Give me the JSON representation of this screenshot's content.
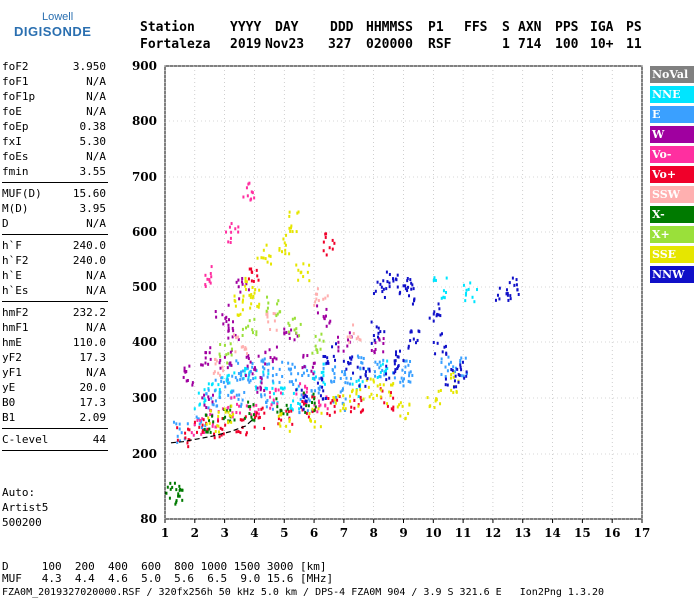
{
  "logo": {
    "top": "Lowell",
    "bottom": "DIGISONDE"
  },
  "header": {
    "labels": [
      "Station",
      "YYYY",
      "DAY",
      "DDD",
      "HHMMSS",
      "P1",
      "FFS",
      "S",
      "AXN",
      "PPS",
      "IGA",
      "PS"
    ],
    "values": [
      "Fortaleza",
      "2019",
      "Nov23",
      "327",
      "020000",
      "RSF",
      "",
      "1",
      "714",
      "100",
      "10+",
      "11"
    ]
  },
  "params": {
    "group1": [
      {
        "name": "foF2",
        "value": "3.950"
      },
      {
        "name": "foF1",
        "value": "N/A"
      },
      {
        "name": "foF1p",
        "value": "N/A"
      },
      {
        "name": "foE",
        "value": "N/A"
      },
      {
        "name": "foEp",
        "value": "0.38"
      },
      {
        "name": "fxI",
        "value": "5.30"
      },
      {
        "name": "foEs",
        "value": "N/A"
      },
      {
        "name": "fmin",
        "value": "3.55"
      }
    ],
    "group2": [
      {
        "name": "MUF(D)",
        "value": "15.60"
      },
      {
        "name": "M(D)",
        "value": "3.95"
      },
      {
        "name": "D",
        "value": "N/A"
      }
    ],
    "group3": [
      {
        "name": "h`F",
        "value": "240.0"
      },
      {
        "name": "h`F2",
        "value": "240.0"
      },
      {
        "name": "h`E",
        "value": "N/A"
      },
      {
        "name": "h`Es",
        "value": "N/A"
      }
    ],
    "group4": [
      {
        "name": "hmF2",
        "value": "232.2"
      },
      {
        "name": "hmF1",
        "value": "N/A"
      },
      {
        "name": "hmE",
        "value": "110.0"
      },
      {
        "name": "yF2",
        "value": "17.3"
      },
      {
        "name": "yF1",
        "value": "N/A"
      },
      {
        "name": "yE",
        "value": "20.0"
      },
      {
        "name": "B0",
        "value": "17.3"
      },
      {
        "name": "B1",
        "value": "2.09"
      }
    ],
    "group5": [
      {
        "name": "C-level",
        "value": "44"
      }
    ]
  },
  "auto": {
    "line1": "Auto:",
    "line2": "Artist5",
    "line3": "500200"
  },
  "muf_table": {
    "d_row": "D     100  200  400  600  800 1000 1500 3000 [km]",
    "muf_row": "MUF   4.3  4.4  4.6  5.0  5.6  6.5  9.0 15.6 [MHz]"
  },
  "footer": "FZA0M_2019327020000.RSF / 320fx256h 50 kHz 5.0 km / DPS-4 FZA0M 904 / 3.9 S 321.6 E   Ion2Png 1.3.20",
  "legend": [
    {
      "label": "NoVal",
      "color": "#808080"
    },
    {
      "label": "NNE",
      "color": "#00e5ff"
    },
    {
      "label": "E",
      "color": "#3aa0ff"
    },
    {
      "label": "W",
      "color": "#a000a0"
    },
    {
      "label": "Vo-",
      "color": "#ff2fa0"
    },
    {
      "label": "Vo+",
      "color": "#f0002a"
    },
    {
      "label": "SSW",
      "color": "#ffb0b0"
    },
    {
      "label": "X-",
      "color": "#007a00"
    },
    {
      "label": "X+",
      "color": "#9ae03a"
    },
    {
      "label": "SSE",
      "color": "#e6e600"
    },
    {
      "label": "NNW",
      "color": "#1010c8"
    }
  ],
  "chart_data": {
    "type": "scatter",
    "title": "",
    "xlabel": "",
    "ylabel": "",
    "xlim": [
      1,
      17
    ],
    "ylim": [
      80,
      900
    ],
    "x_ticks": [
      1,
      2,
      3,
      4,
      5,
      6,
      7,
      8,
      9,
      10,
      11,
      12,
      13,
      14,
      15,
      16,
      17
    ],
    "y_ticks": [
      80,
      200,
      300,
      400,
      500,
      600,
      700,
      800,
      900
    ],
    "grid": true,
    "legend_position": "right",
    "trace_profile": [
      {
        "f": 1.2,
        "h": 220
      },
      {
        "f": 1.6,
        "h": 222
      },
      {
        "f": 2.0,
        "h": 226
      },
      {
        "f": 2.6,
        "h": 232
      },
      {
        "f": 3.2,
        "h": 240
      },
      {
        "f": 3.7,
        "h": 250
      },
      {
        "f": 3.95,
        "h": 262
      }
    ],
    "series": [
      {
        "name": "NoVal",
        "points": []
      },
      {
        "name": "NNE",
        "points": [
          [
            2.2,
            300
          ],
          [
            2.6,
            320
          ],
          [
            3.1,
            330
          ],
          [
            3.6,
            345
          ],
          [
            4.2,
            335
          ],
          [
            4.8,
            310
          ],
          [
            5.4,
            300
          ],
          [
            6.1,
            345
          ],
          [
            7.4,
            320
          ],
          [
            8.3,
            350
          ],
          [
            10.2,
            500
          ],
          [
            11.2,
            495
          ]
        ]
      },
      {
        "name": "E",
        "points": [
          [
            1.5,
            240
          ],
          [
            2.1,
            265
          ],
          [
            2.5,
            300
          ],
          [
            2.9,
            320
          ],
          [
            3.3,
            350
          ],
          [
            3.7,
            340
          ],
          [
            4.1,
            355
          ],
          [
            4.6,
            345
          ],
          [
            5.1,
            350
          ],
          [
            5.5,
            340
          ],
          [
            6.0,
            330
          ],
          [
            6.5,
            345
          ],
          [
            7.0,
            340
          ],
          [
            7.6,
            360
          ],
          [
            8.2,
            355
          ],
          [
            8.8,
            340
          ],
          [
            9.1,
            350
          ],
          [
            3.4,
            305
          ],
          [
            4.4,
            300
          ],
          [
            5.7,
            290
          ],
          [
            6.8,
            300
          ],
          [
            10.4,
            360
          ],
          [
            10.9,
            355
          ]
        ]
      },
      {
        "name": "W",
        "points": [
          [
            1.8,
            340
          ],
          [
            2.3,
            380
          ],
          [
            2.9,
            450
          ],
          [
            3.3,
            420
          ],
          [
            3.6,
            500
          ],
          [
            3.9,
            360
          ],
          [
            4.5,
            380
          ],
          [
            5.2,
            420
          ],
          [
            5.8,
            360
          ],
          [
            6.3,
            450
          ],
          [
            7.0,
            400
          ],
          [
            8.1,
            390
          ],
          [
            2.4,
            290
          ],
          [
            3.0,
            370
          ],
          [
            4.1,
            330
          ]
        ]
      },
      {
        "name": "Vo-",
        "points": [
          [
            2.1,
            250
          ],
          [
            2.7,
            270
          ],
          [
            3.3,
            285
          ],
          [
            3.9,
            290
          ],
          [
            4.7,
            300
          ],
          [
            5.5,
            310
          ],
          [
            6.2,
            290
          ],
          [
            2.5,
            520
          ],
          [
            3.2,
            600
          ],
          [
            3.8,
            680
          ]
        ]
      },
      {
        "name": "Vo+",
        "points": [
          [
            1.6,
            235
          ],
          [
            2.2,
            245
          ],
          [
            2.8,
            250
          ],
          [
            3.5,
            255
          ],
          [
            4.2,
            265
          ],
          [
            5.0,
            275
          ],
          [
            5.8,
            285
          ],
          [
            6.6,
            290
          ],
          [
            7.4,
            295
          ],
          [
            8.4,
            300
          ],
          [
            6.5,
            580
          ],
          [
            4.0,
            520
          ]
        ]
      },
      {
        "name": "SSW",
        "points": [
          [
            2.8,
            360
          ],
          [
            3.5,
            400
          ],
          [
            4.5,
            440
          ],
          [
            6.2,
            480
          ],
          [
            7.3,
            420
          ]
        ]
      },
      {
        "name": "X-",
        "points": [
          [
            1.25,
            130
          ],
          [
            1.4,
            130
          ],
          [
            2.4,
            260
          ],
          [
            3.1,
            275
          ],
          [
            3.8,
            280
          ],
          [
            4.9,
            290
          ],
          [
            5.8,
            295
          ]
        ]
      },
      {
        "name": "X+",
        "points": [
          [
            3.0,
            380
          ],
          [
            3.8,
            430
          ],
          [
            4.6,
            470
          ],
          [
            5.3,
            430
          ],
          [
            6.1,
            400
          ]
        ]
      },
      {
        "name": "SSE",
        "points": [
          [
            2.6,
            260
          ],
          [
            3.2,
            270
          ],
          [
            3.7,
            500
          ],
          [
            4.3,
            560
          ],
          [
            4.9,
            580
          ],
          [
            5.3,
            620
          ],
          [
            5.6,
            530
          ],
          [
            4.0,
            480
          ],
          [
            3.4,
            470
          ],
          [
            6.8,
            290
          ],
          [
            7.4,
            300
          ],
          [
            7.9,
            320
          ],
          [
            8.4,
            310
          ],
          [
            9.0,
            280
          ],
          [
            10.0,
            300
          ],
          [
            10.6,
            330
          ],
          [
            6.0,
            270
          ],
          [
            5.0,
            260
          ]
        ]
      },
      {
        "name": "NNW",
        "points": [
          [
            8.2,
            500
          ],
          [
            8.6,
            510
          ],
          [
            9.0,
            505
          ],
          [
            9.3,
            490
          ],
          [
            8.1,
            420
          ],
          [
            8.6,
            350
          ],
          [
            8.9,
            380
          ],
          [
            9.3,
            410
          ],
          [
            10.0,
            460
          ],
          [
            10.2,
            400
          ],
          [
            10.6,
            340
          ],
          [
            10.9,
            350
          ],
          [
            12.3,
            495
          ],
          [
            12.6,
            500
          ],
          [
            6.5,
            380
          ],
          [
            7.2,
            360
          ],
          [
            7.7,
            340
          ],
          [
            5.6,
            300
          ],
          [
            6.3,
            320
          ]
        ]
      }
    ]
  }
}
